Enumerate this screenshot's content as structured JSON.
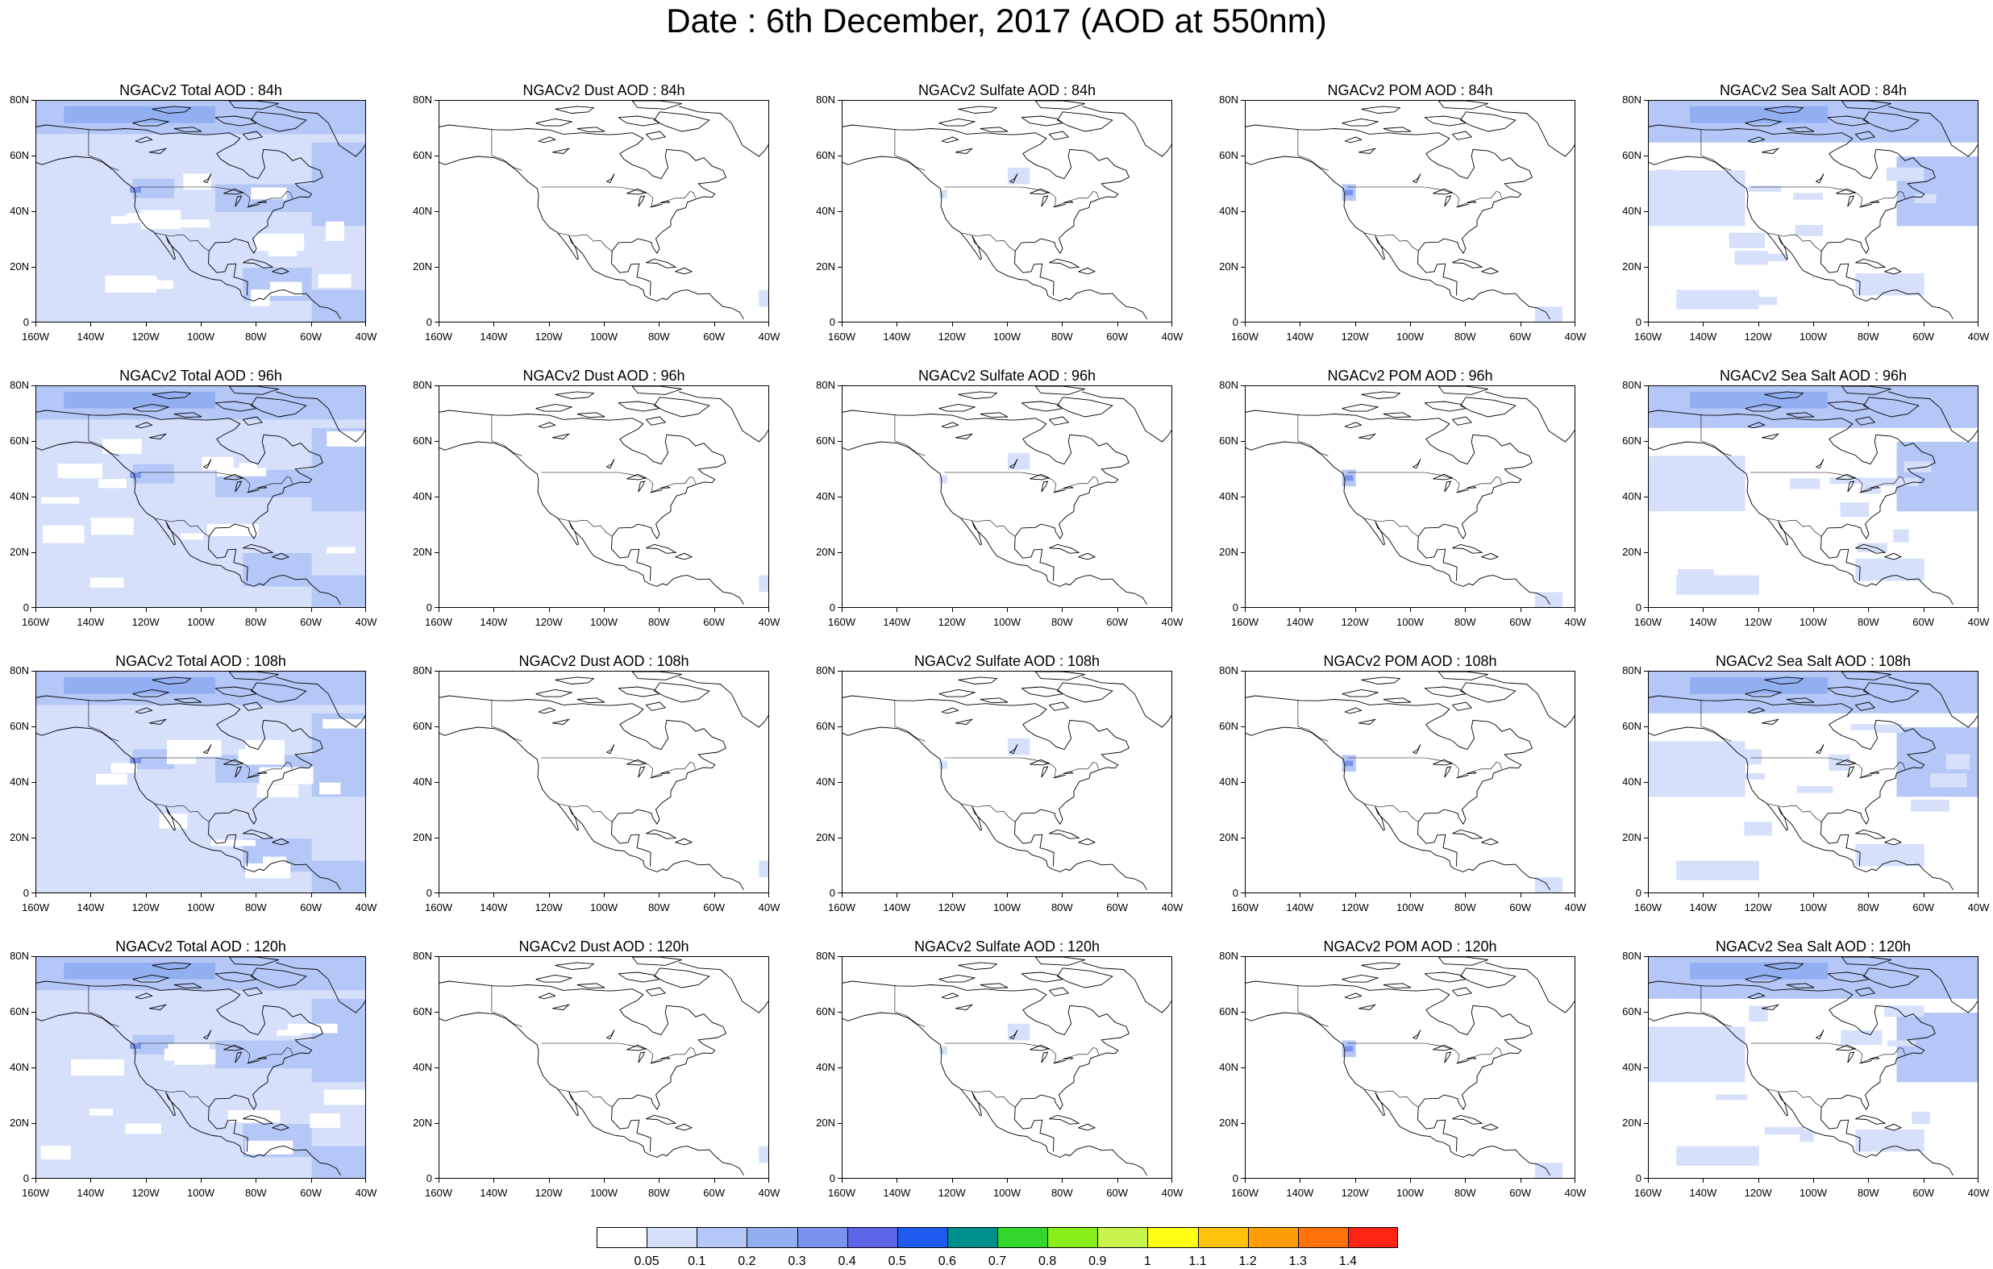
{
  "title": "Date : 6th December, 2017 (AOD at 550nm)",
  "x_tick_labels": [
    "160W",
    "140W",
    "120W",
    "100W",
    "80W",
    "60W",
    "40W"
  ],
  "y_tick_labels": [
    "0",
    "20N",
    "40N",
    "60N",
    "80N"
  ],
  "panels": [
    {
      "title": "NGACv2 Total AOD : 84h",
      "species": "total",
      "hour": 84
    },
    {
      "title": "NGACv2 Dust AOD : 84h",
      "species": "dust",
      "hour": 84
    },
    {
      "title": "NGACv2 Sulfate AOD : 84h",
      "species": "sulfate",
      "hour": 84
    },
    {
      "title": "NGACv2 POM AOD : 84h",
      "species": "pom",
      "hour": 84
    },
    {
      "title": "NGACv2 Sea Salt AOD : 84h",
      "species": "seasalt",
      "hour": 84
    },
    {
      "title": "NGACv2 Total AOD : 96h",
      "species": "total",
      "hour": 96
    },
    {
      "title": "NGACv2 Dust AOD : 96h",
      "species": "dust",
      "hour": 96
    },
    {
      "title": "NGACv2 Sulfate AOD : 96h",
      "species": "sulfate",
      "hour": 96
    },
    {
      "title": "NGACv2 POM AOD : 96h",
      "species": "pom",
      "hour": 96
    },
    {
      "title": "NGACv2 Sea Salt AOD : 96h",
      "species": "seasalt",
      "hour": 96
    },
    {
      "title": "NGACv2 Total AOD : 108h",
      "species": "total",
      "hour": 108
    },
    {
      "title": "NGACv2 Dust AOD : 108h",
      "species": "dust",
      "hour": 108
    },
    {
      "title": "NGACv2 Sulfate AOD : 108h",
      "species": "sulfate",
      "hour": 108
    },
    {
      "title": "NGACv2 POM AOD : 108h",
      "species": "pom",
      "hour": 108
    },
    {
      "title": "NGACv2 Sea Salt AOD : 108h",
      "species": "seasalt",
      "hour": 108
    },
    {
      "title": "NGACv2 Total AOD : 120h",
      "species": "total",
      "hour": 120
    },
    {
      "title": "NGACv2 Dust AOD : 120h",
      "species": "dust",
      "hour": 120
    },
    {
      "title": "NGACv2 Sulfate AOD : 120h",
      "species": "sulfate",
      "hour": 120
    },
    {
      "title": "NGACv2 POM AOD : 120h",
      "species": "pom",
      "hour": 120
    },
    {
      "title": "NGACv2 Sea Salt  AOD : 120h",
      "species": "seasalt",
      "hour": 120
    }
  ],
  "colorbar": {
    "labels": [
      "0.05",
      "0.1",
      "0.2",
      "0.3",
      "0.4",
      "0.5",
      "0.6",
      "0.7",
      "0.8",
      "0.9",
      "1",
      "1.1",
      "1.2",
      "1.3",
      "1.4"
    ],
    "colors": [
      "#ffffff",
      "#d6e0fb",
      "#b5c7f6",
      "#92aff2",
      "#7b93ee",
      "#5c64e8",
      "#1e5cf0",
      "#00908c",
      "#33d62b",
      "#88ef1a",
      "#c9f44a",
      "#ffff14",
      "#fec20b",
      "#fe9e06",
      "#fe7207",
      "#fe2415"
    ]
  }
}
